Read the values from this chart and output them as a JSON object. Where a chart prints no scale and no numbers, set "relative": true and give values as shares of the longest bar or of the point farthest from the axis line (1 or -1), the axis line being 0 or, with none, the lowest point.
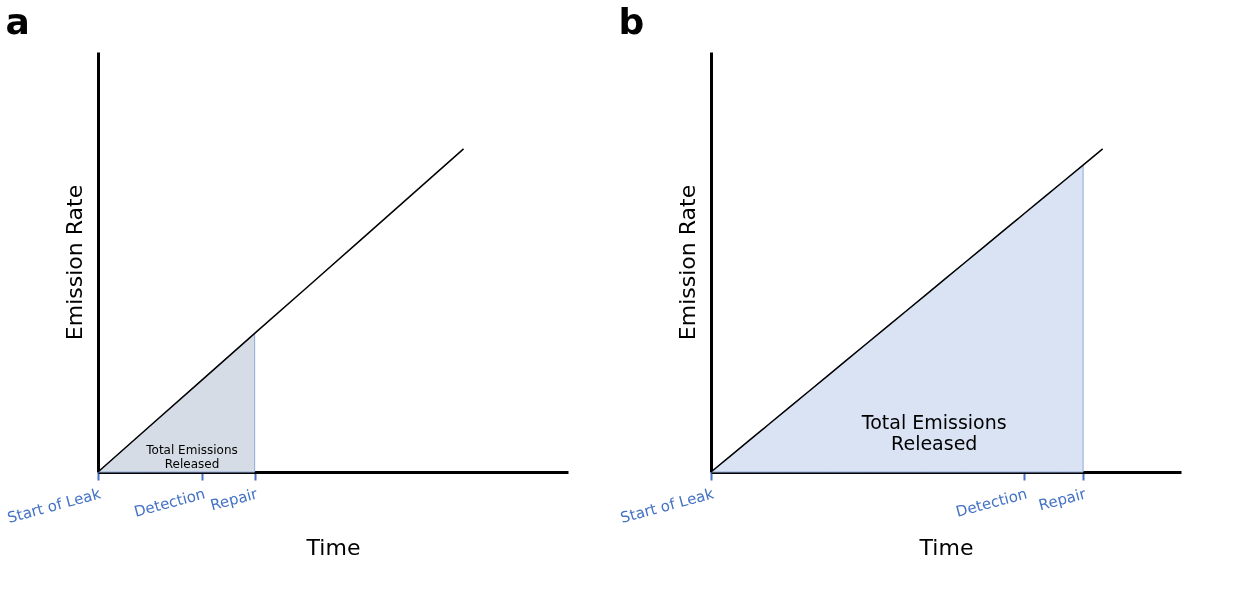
{
  "chart_data": [
    {
      "type": "line",
      "title": "a",
      "xlabel": "Time",
      "ylabel": "Emission Rate",
      "relative": true,
      "tick_labels": "x",
      "grid": false,
      "legend": false,
      "categories": [
        "Start of Leak",
        null,
        "Detection",
        "Repair",
        null,
        null,
        null,
        null,
        null,
        null
      ],
      "series": [
        {
          "color": "#000000",
          "values": [
            0,
            0.143,
            0.286,
            0.429,
            0.571,
            0.714,
            0.857,
            1,
            null,
            null
          ]
        },
        {
          "type": "area",
          "color": "#d6dce5",
          "values": [
            0,
            0.143,
            0.286,
            0.429,
            null,
            null,
            null,
            null,
            null,
            null
          ]
        }
      ],
      "annotations": [
        "Total Emissions\nReleased"
      ]
    },
    {
      "type": "line",
      "title": "b",
      "xlabel": "Time",
      "ylabel": "Emission Rate",
      "relative": true,
      "tick_labels": "x",
      "grid": false,
      "legend": false,
      "categories": [
        "Start of Leak",
        null,
        null,
        null,
        null,
        null,
        null,
        null,
        null,
        null,
        null,
        null,
        null,
        null,
        null,
        null,
        "Detection",
        null,
        null,
        "Repair",
        null,
        null,
        null,
        null,
        null
      ],
      "series": [
        {
          "color": "#000000",
          "values": [
            0,
            0.05,
            0.1,
            0.15,
            0.2,
            0.25,
            0.3,
            0.35,
            0.4,
            0.45,
            0.5,
            0.55,
            0.6,
            0.65,
            0.7,
            0.75,
            0.8,
            0.85,
            0.9,
            0.95,
            1,
            null,
            null,
            null,
            null
          ]
        },
        {
          "type": "area",
          "color": "#dae3f3",
          "values": [
            0,
            0.05,
            0.1,
            0.15,
            0.2,
            0.25,
            0.3,
            0.35,
            0.4,
            0.45,
            0.5,
            0.55,
            0.6,
            0.65,
            0.7,
            0.75,
            0.8,
            0.85,
            0.9,
            0.95,
            null,
            null,
            null,
            null,
            null
          ]
        }
      ],
      "annotations": [
        "Total Emissions\nReleased"
      ]
    }
  ]
}
